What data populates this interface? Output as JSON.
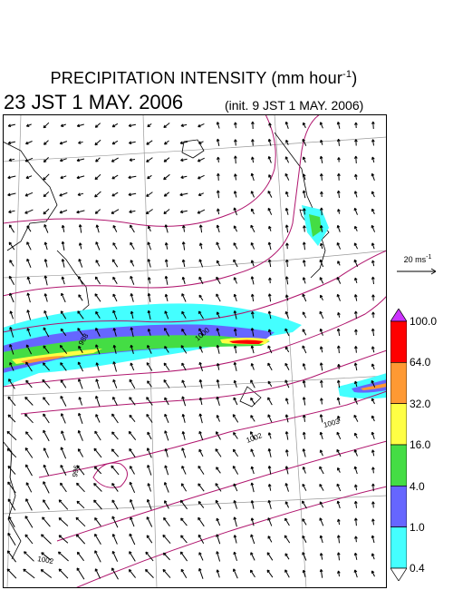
{
  "header": {
    "title": "PRECIPITATION INTENSITY (mm hour",
    "title_unit_exp": "-1",
    "title_close": ")",
    "valid_time": "23 JST 1 MAY. 2006",
    "init_time": "(init. 9 JST 1 MAY. 2006)"
  },
  "map": {
    "contour_labels": [
      "988",
      "1000",
      "1002",
      "1003",
      "996",
      "1002"
    ],
    "contour_color": "#b0166e",
    "grid_color": "#9a9a9a"
  },
  "reference_vector": {
    "label": "20 ms",
    "label_exp": "-1"
  },
  "colorbar": {
    "levels": [
      "100.0",
      "64.0",
      "32.0",
      "16.0",
      "4.0",
      "1.0",
      "0.4"
    ],
    "colors": [
      "#ff0000",
      "#ff9933",
      "#ffff44",
      "#44dd44",
      "#6666ff",
      "#44ffff"
    ],
    "over_color": "#cc33ff",
    "under_color": "#ffffff"
  }
}
